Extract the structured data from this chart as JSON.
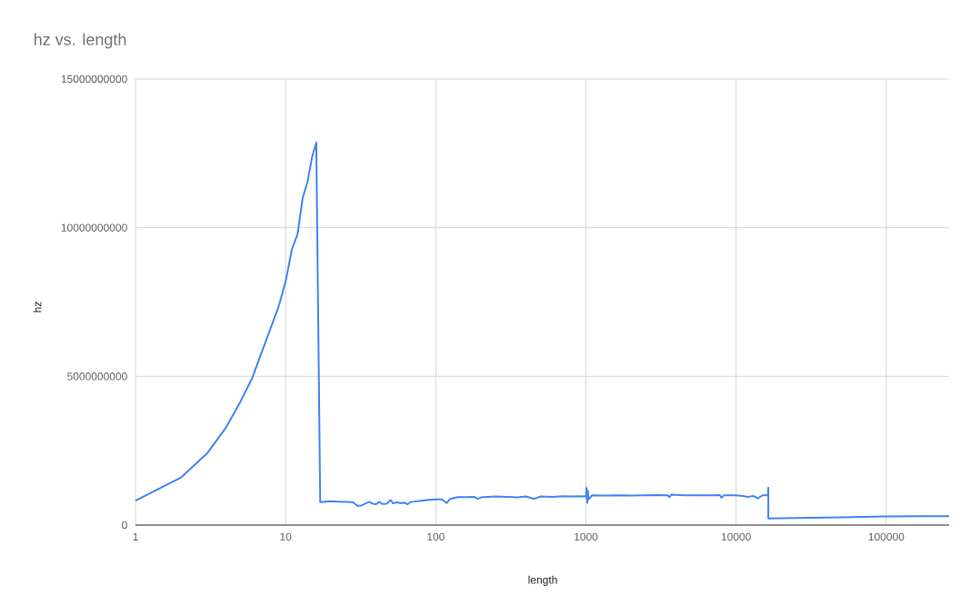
{
  "chart_data": {
    "type": "line",
    "title": "hz vs. length",
    "xlabel": "length",
    "ylabel": "hz",
    "log": "x",
    "grid": true,
    "marker": "none",
    "line_style": "solid",
    "xlim": [
      1,
      262144
    ],
    "xticks": [
      1,
      10,
      100,
      1000,
      10000,
      100000
    ],
    "ylim": [
      0,
      15000000000
    ],
    "yticks": [
      0,
      5000000000,
      10000000000,
      15000000000
    ],
    "x": [
      1,
      2,
      3,
      4,
      5,
      6,
      7,
      8,
      9,
      10,
      11,
      12,
      13,
      14,
      15,
      16,
      17,
      18,
      20,
      22,
      25,
      28,
      30,
      32,
      34,
      36,
      38,
      40,
      42,
      44,
      47,
      50,
      52,
      55,
      58,
      62,
      65,
      68,
      72,
      80,
      90,
      100,
      110,
      118,
      125,
      140,
      160,
      180,
      190,
      200,
      250,
      300,
      350,
      400,
      450,
      500,
      600,
      700,
      800,
      900,
      1000,
      1010,
      1020,
      1030,
      1040,
      1100,
      1300,
      1600,
      2000,
      2500,
      3000,
      3500,
      3600,
      3700,
      4500,
      5500,
      7000,
      7800,
      8000,
      8300,
      10000,
      11000,
      12000,
      13000,
      14000,
      15000,
      16300,
      16384,
      16390,
      20000,
      50000,
      100000,
      262144
    ],
    "series": [
      {
        "color": "#4285f4",
        "values": [
          820000000,
          1590000000,
          2410000000,
          3270000000,
          4150000000,
          4950000000,
          5870000000,
          6660000000,
          7360000000,
          8190000000,
          9260000000,
          9780000000,
          11000000000,
          11550000000,
          12370000000,
          12860000000,
          770000000,
          780000000,
          800000000,
          790000000,
          780000000,
          770000000,
          650000000,
          660000000,
          720000000,
          780000000,
          720000000,
          700000000,
          780000000,
          710000000,
          720000000,
          840000000,
          730000000,
          760000000,
          740000000,
          750000000,
          700000000,
          780000000,
          790000000,
          820000000,
          850000000,
          860000000,
          860000000,
          740000000,
          880000000,
          940000000,
          940000000,
          950000000,
          880000000,
          930000000,
          960000000,
          950000000,
          930000000,
          960000000,
          880000000,
          960000000,
          950000000,
          970000000,
          960000000,
          970000000,
          960000000,
          1250000000,
          750000000,
          1150000000,
          860000000,
          1000000000,
          990000000,
          1000000000,
          990000000,
          1000000000,
          1010000000,
          1000000000,
          940000000,
          1020000000,
          1000000000,
          1000000000,
          1000000000,
          1010000000,
          920000000,
          1000000000,
          1000000000,
          980000000,
          950000000,
          980000000,
          900000000,
          1000000000,
          1000000000,
          1250000000,
          220000000,
          230000000,
          260000000,
          290000000,
          300000000
        ]
      }
    ]
  }
}
